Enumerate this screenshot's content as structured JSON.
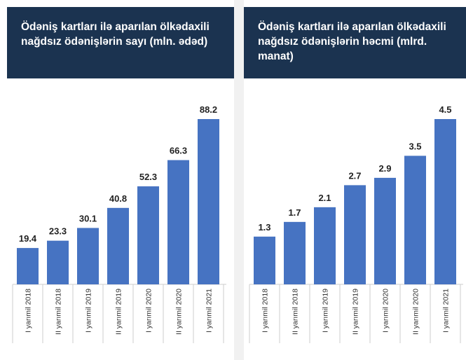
{
  "chart_data": [
    {
      "type": "bar",
      "title": "Ödəniş kartları ilə aparılan ölkədaxili nağdsız ödənişlərin sayı (mln. ədəd)",
      "categories": [
        "I yarımil 2018",
        "II yarımil 2018",
        "I yarımil 2019",
        "II yarımil 2019",
        "I yarımil 2020",
        "II yarımil 2020",
        "I yarımil 2021"
      ],
      "values": [
        19.4,
        23.3,
        30.1,
        40.8,
        52.3,
        66.3,
        88.2
      ],
      "color": "#4673c2"
    },
    {
      "type": "bar",
      "title": "Ödəniş kartları ilə aparılan ölkədaxili nağdsız ödənişlərin həcmi (mlrd. manat)",
      "categories": [
        "I yarımil 2018",
        "II yarımil 2018",
        "I yarımil 2019",
        "II yarımil 2019",
        "I yarımil 2020",
        "II yarımil 2020",
        "I yarımil 2021"
      ],
      "values": [
        1.3,
        1.7,
        2.1,
        2.7,
        2.9,
        3.5,
        4.5
      ],
      "color": "#4673c2"
    }
  ]
}
